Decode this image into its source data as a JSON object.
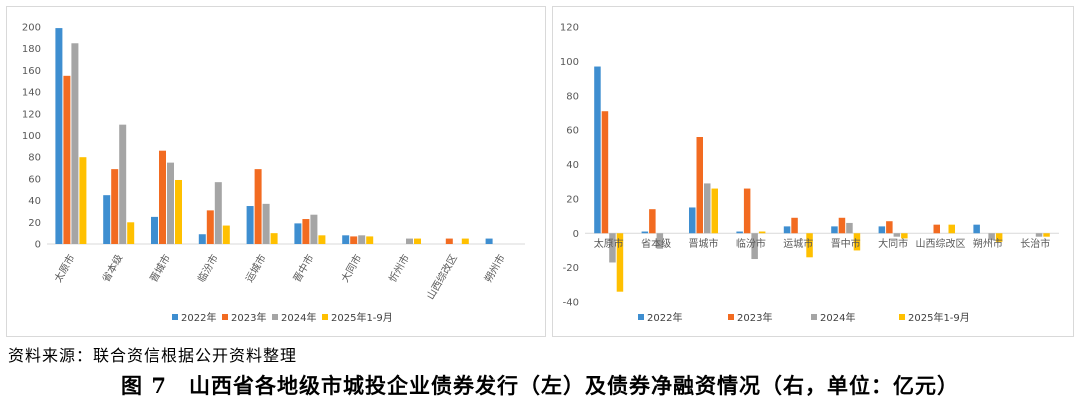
{
  "colors": {
    "s2022": "#3e8ed0",
    "s2023": "#f26b21",
    "s2024": "#a5a5a5",
    "s2025": "#ffc000",
    "axis": "#d9d9d9",
    "grid": "#e6e6e6",
    "text": "#595959"
  },
  "chart_data": [
    {
      "type": "bar",
      "categories": [
        "太原市",
        "省本级",
        "晋城市",
        "临汾市",
        "运城市",
        "晋中市",
        "大同市",
        "忻州市",
        "山西综改区",
        "朔州市"
      ],
      "series": [
        {
          "name": "2022年",
          "values": [
            199,
            45,
            25,
            9,
            35,
            19,
            8,
            0,
            0,
            5
          ]
        },
        {
          "name": "2023年",
          "values": [
            155,
            69,
            86,
            31,
            69,
            23,
            7,
            0,
            5,
            0
          ]
        },
        {
          "name": "2024年",
          "values": [
            185,
            110,
            75,
            57,
            37,
            27,
            8,
            5,
            0,
            0
          ]
        },
        {
          "name": "2025年1-9月",
          "values": [
            80,
            20,
            59,
            17,
            10,
            8,
            7,
            5,
            5,
            0
          ]
        }
      ],
      "ylim": [
        0,
        200
      ],
      "yticks": [
        0,
        20,
        40,
        60,
        80,
        100,
        120,
        140,
        160,
        180,
        200
      ],
      "grid": false,
      "legend": "bottom"
    },
    {
      "type": "bar",
      "categories": [
        "太原市",
        "省本级",
        "晋城市",
        "临汾市",
        "运城市",
        "晋中市",
        "大同市",
        "山西综改区",
        "朔州市",
        "长治市"
      ],
      "series": [
        {
          "name": "2022年",
          "values": [
            97,
            1,
            15,
            1,
            4,
            4,
            4,
            0,
            5,
            0
          ]
        },
        {
          "name": "2023年",
          "values": [
            71,
            14,
            56,
            26,
            9,
            9,
            7,
            5,
            0,
            0
          ]
        },
        {
          "name": "2024年",
          "values": [
            -17,
            -9,
            29,
            -15,
            0,
            6,
            -2,
            0,
            -4,
            -2
          ]
        },
        {
          "name": "2025年1-9月",
          "values": [
            -34,
            0,
            26,
            1,
            -14,
            -10,
            -3,
            5,
            -5,
            -2
          ]
        }
      ],
      "ylim": [
        -40,
        120
      ],
      "yticks": [
        -40,
        -20,
        0,
        20,
        40,
        60,
        80,
        100,
        120
      ],
      "grid": false,
      "legend": "bottom"
    }
  ],
  "footer": {
    "source": "资料来源：联合资信根据公开资料整理",
    "caption": "图 7　山西省各地级市城投企业债券发行（左）及债券净融资情况（右，单位：亿元）"
  }
}
